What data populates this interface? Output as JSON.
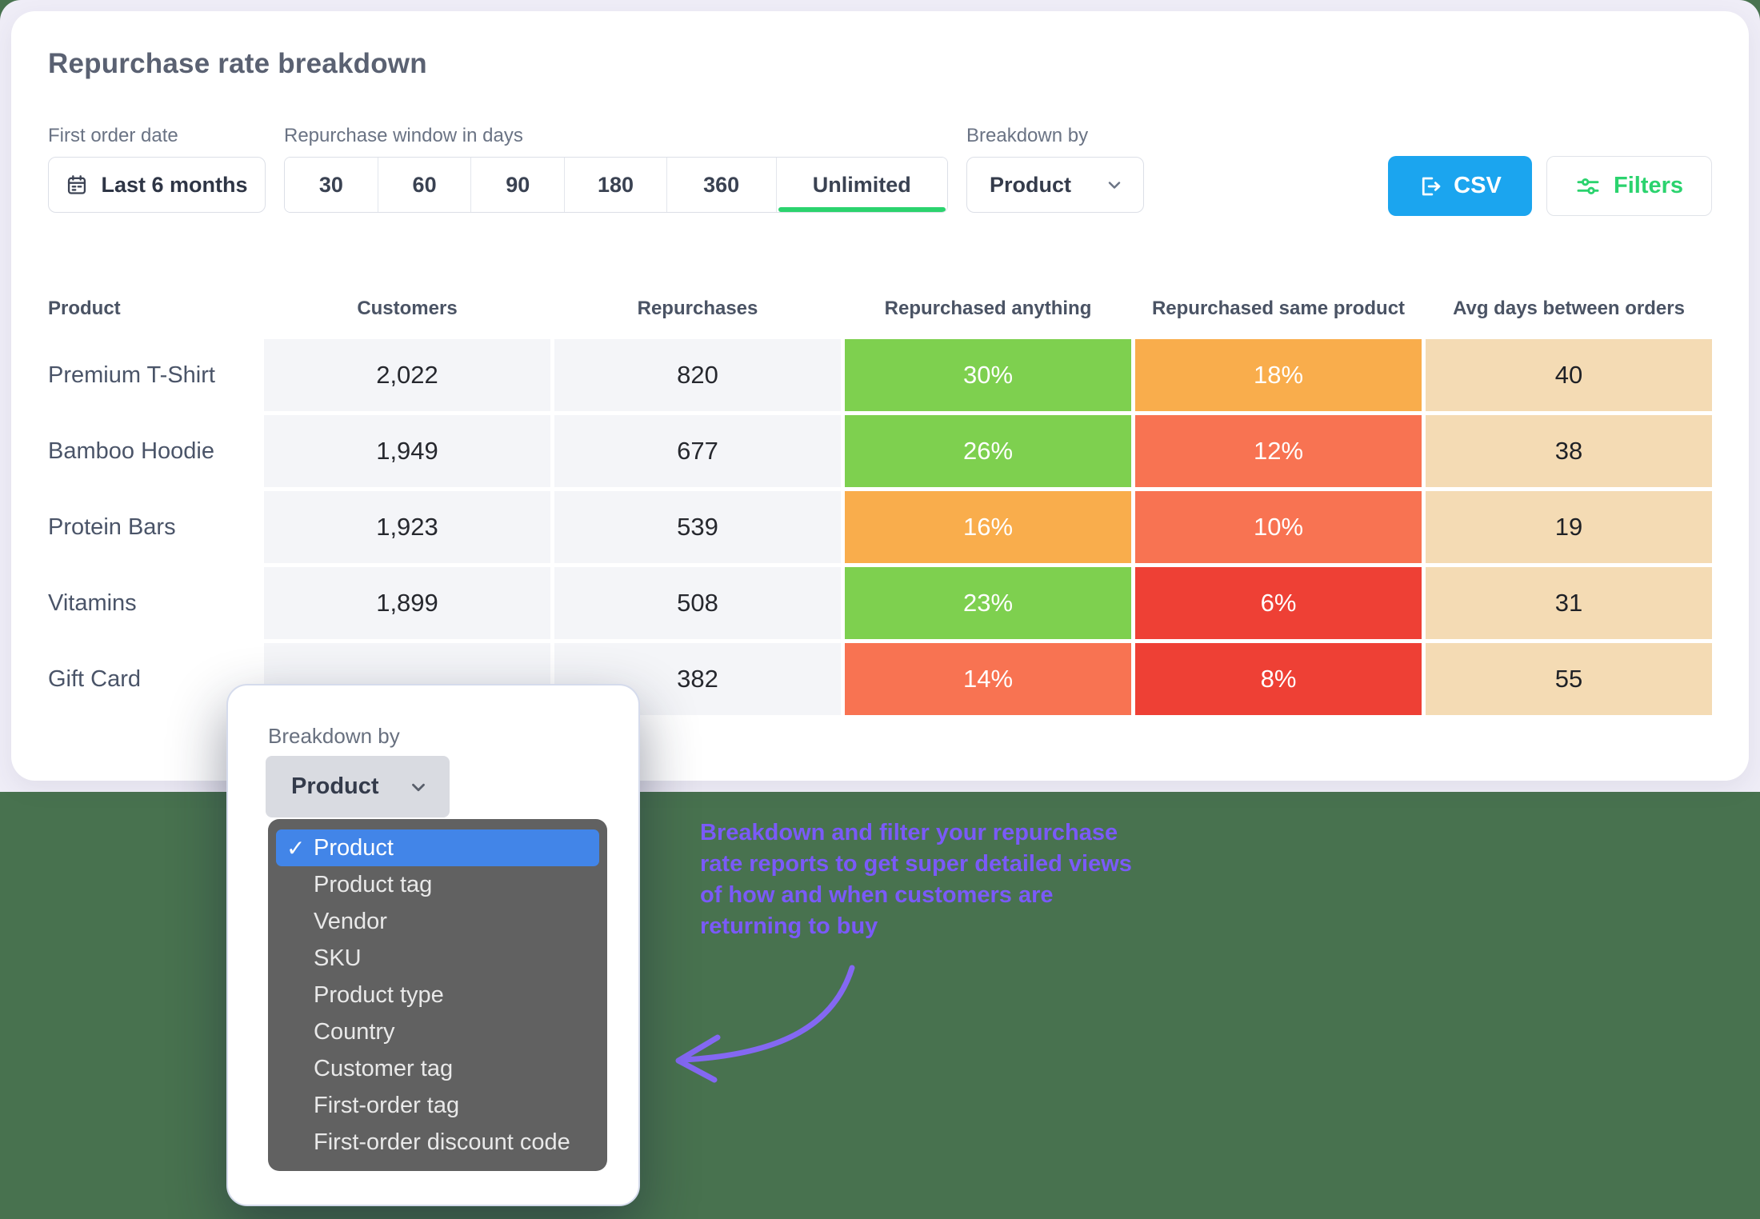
{
  "header": {
    "title": "Repurchase rate breakdown"
  },
  "filters": {
    "first_order_date": {
      "label": "First order date",
      "value": "Last 6 months"
    },
    "repurchase_window": {
      "label": "Repurchase window in days",
      "options": [
        "30",
        "60",
        "90",
        "180",
        "360",
        "Unlimited"
      ],
      "selected": "Unlimited"
    },
    "breakdown_by": {
      "label": "Breakdown by",
      "value": "Product"
    }
  },
  "actions": {
    "csv_label": "CSV",
    "filters_label": "Filters"
  },
  "table": {
    "columns": [
      "Product",
      "Customers",
      "Repurchases",
      "Repurchased anything",
      "Repurchased same product",
      "Avg days between orders"
    ],
    "rows": [
      {
        "product": "Premium T-Shirt",
        "cells": [
          {
            "text": "2,022",
            "type": "gray"
          },
          {
            "text": "820",
            "type": "gray"
          },
          {
            "text": "30%",
            "type": "green"
          },
          {
            "text": "18%",
            "type": "orange"
          },
          {
            "text": "40",
            "type": "tan"
          }
        ]
      },
      {
        "product": "Bamboo Hoodie",
        "cells": [
          {
            "text": "1,949",
            "type": "gray"
          },
          {
            "text": "677",
            "type": "gray"
          },
          {
            "text": "26%",
            "type": "green"
          },
          {
            "text": "12%",
            "type": "salmon"
          },
          {
            "text": "38",
            "type": "tan"
          }
        ]
      },
      {
        "product": "Protein Bars",
        "cells": [
          {
            "text": "1,923",
            "type": "gray"
          },
          {
            "text": "539",
            "type": "gray"
          },
          {
            "text": "16%",
            "type": "orange"
          },
          {
            "text": "10%",
            "type": "salmon"
          },
          {
            "text": "19",
            "type": "tan"
          }
        ]
      },
      {
        "product": "Vitamins",
        "cells": [
          {
            "text": "1,899",
            "type": "gray"
          },
          {
            "text": "508",
            "type": "gray"
          },
          {
            "text": "23%",
            "type": "green"
          },
          {
            "text": "6%",
            "type": "red"
          },
          {
            "text": "31",
            "type": "tan"
          }
        ]
      },
      {
        "product": "Gift Card",
        "cells": [
          {
            "text": "",
            "type": "gray"
          },
          {
            "text": "382",
            "type": "gray"
          },
          {
            "text": "14%",
            "type": "salmon"
          },
          {
            "text": "8%",
            "type": "red"
          },
          {
            "text": "55",
            "type": "tan"
          }
        ]
      }
    ]
  },
  "popup": {
    "label": "Breakdown by",
    "select_value": "Product",
    "menu_items": [
      {
        "label": "Product",
        "checked": true,
        "selected": true
      },
      {
        "label": "Product tag"
      },
      {
        "label": "Vendor"
      },
      {
        "label": "SKU"
      },
      {
        "label": "Product type"
      },
      {
        "label": "Country"
      },
      {
        "label": "Customer tag"
      },
      {
        "label": "First-order tag"
      },
      {
        "label": "First-order discount code"
      }
    ]
  },
  "annotation": {
    "lines": [
      "Breakdown and filter your repurchase",
      "rate reports to get super detailed views",
      "of how and when customers are",
      "returning to buy"
    ]
  },
  "colors": {
    "bg_green": "#48724F",
    "bg_lavender": "#EFEDF7",
    "accent_green": "#2BD36E",
    "csv_blue": "#1BA5EF",
    "purple": "#7A5AF8",
    "menu_blue": "#4285E8",
    "cell_gray": "#F4F5F8",
    "green": "#7ED04F",
    "orange": "#F9AD4C",
    "salmon": "#F87352",
    "red": "#EE4035",
    "tan": "#F4DBB4"
  }
}
